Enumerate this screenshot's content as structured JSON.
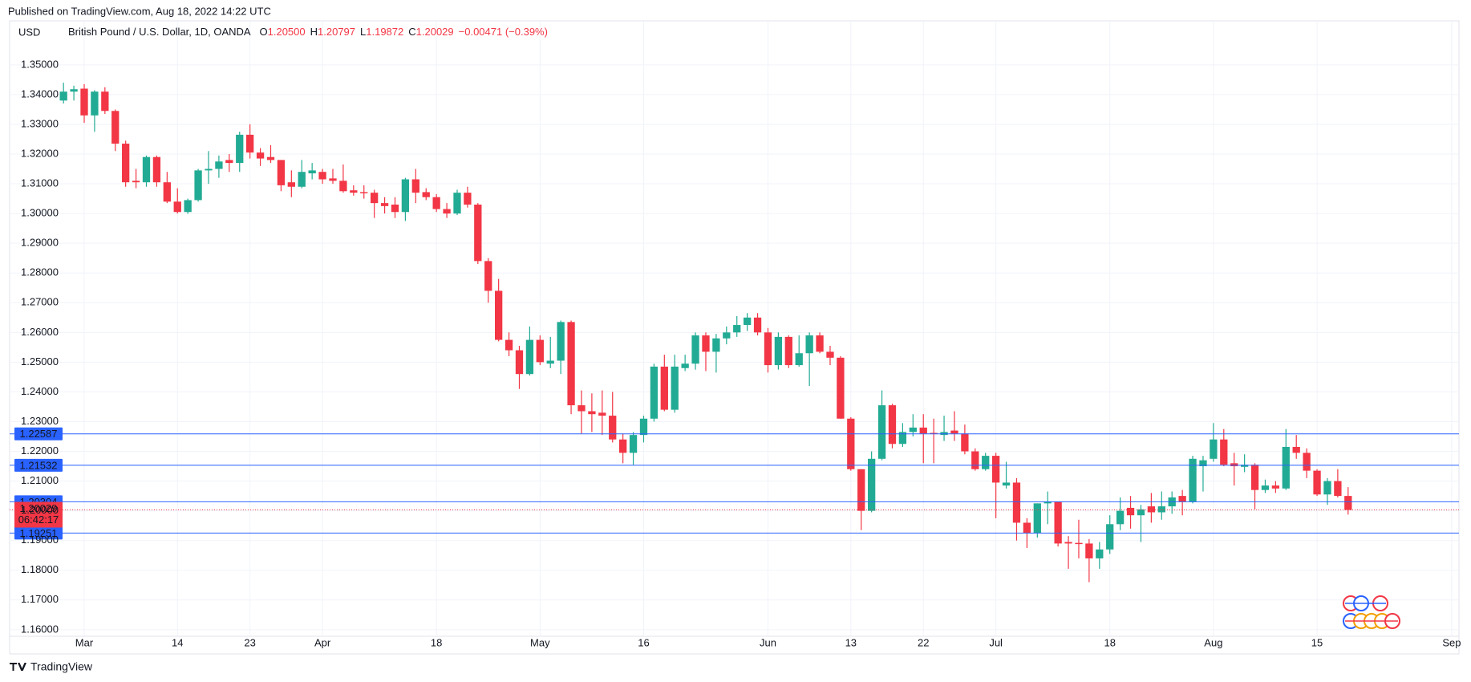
{
  "header": {
    "published": "Published on TradingView.com, Aug 18, 2022 14:22 UTC"
  },
  "footer": {
    "brand": "TradingView"
  },
  "chart_data": {
    "type": "candlestick",
    "currency": "USD",
    "title": "British Pound / U.S. Dollar, 1D, OANDA",
    "ohlc_legend": [
      {
        "label": "O",
        "text": "1.20500"
      },
      {
        "label": "H",
        "text": "1.20797"
      },
      {
        "label": "L",
        "text": "1.19872"
      },
      {
        "label": "C",
        "text": "1.20029"
      }
    ],
    "change_text": "−0.00471 (−0.39%)",
    "up_color": "#22ab94",
    "down_color": "#f23645",
    "grid": true,
    "xlim": [
      -5.2,
      134.7
    ],
    "ylim": [
      1.1578,
      1.3648
    ],
    "xticks": [
      {
        "value": 2,
        "label": "Mar"
      },
      {
        "value": 11,
        "label": "14"
      },
      {
        "value": 18,
        "label": "23"
      },
      {
        "value": 25,
        "label": "Apr"
      },
      {
        "value": 36,
        "label": "18"
      },
      {
        "value": 46,
        "label": "May"
      },
      {
        "value": 56,
        "label": "16"
      },
      {
        "value": 68,
        "label": "Jun"
      },
      {
        "value": 76,
        "label": "13"
      },
      {
        "value": 83,
        "label": "22"
      },
      {
        "value": 90,
        "label": "Jul"
      },
      {
        "value": 101,
        "label": "18"
      },
      {
        "value": 111,
        "label": "Aug"
      },
      {
        "value": 121,
        "label": "15"
      },
      {
        "value": 134,
        "label": "Sep"
      }
    ],
    "yticks": [
      {
        "value": 1.16,
        "label": "1.16000"
      },
      {
        "value": 1.17,
        "label": "1.17000"
      },
      {
        "value": 1.18,
        "label": "1.18000"
      },
      {
        "value": 1.19,
        "label": "1.19000"
      },
      {
        "value": 1.2,
        "label": "1.20000"
      },
      {
        "value": 1.21,
        "label": "1.21000"
      },
      {
        "value": 1.22,
        "label": "1.22000"
      },
      {
        "value": 1.23,
        "label": "1.23000"
      },
      {
        "value": 1.24,
        "label": "1.24000"
      },
      {
        "value": 1.25,
        "label": "1.25000"
      },
      {
        "value": 1.26,
        "label": "1.26000"
      },
      {
        "value": 1.27,
        "label": "1.27000"
      },
      {
        "value": 1.28,
        "label": "1.28000"
      },
      {
        "value": 1.29,
        "label": "1.29000"
      },
      {
        "value": 1.3,
        "label": "1.30000"
      },
      {
        "value": 1.31,
        "label": "1.31000"
      },
      {
        "value": 1.32,
        "label": "1.32000"
      },
      {
        "value": 1.33,
        "label": "1.33000"
      },
      {
        "value": 1.34,
        "label": "1.34000"
      },
      {
        "value": 1.35,
        "label": "1.35000"
      }
    ],
    "price_lines": [
      {
        "value": 1.22587,
        "label": "1.22587"
      },
      {
        "value": 1.21532,
        "label": "1.21532"
      },
      {
        "value": 1.20304,
        "label": "1.20304"
      },
      {
        "value": 1.19251,
        "label": "1.19251"
      }
    ],
    "price_line_color": "#2962ff",
    "current_price": {
      "value": 1.20029,
      "label": "1.20029",
      "countdown": "06:42:17"
    },
    "open": [
      1.338,
      1.341,
      1.342,
      1.333,
      1.341,
      1.3345,
      1.3235,
      1.311,
      1.3105,
      1.319,
      1.3105,
      1.304,
      1.3005,
      1.3045,
      1.3145,
      1.315,
      1.318,
      1.317,
      1.3265,
      1.3205,
      1.319,
      1.318,
      1.3105,
      1.309,
      1.3135,
      1.314,
      1.3118,
      1.311,
      1.3078,
      1.3072,
      1.307,
      1.3035,
      1.303,
      1.3005,
      1.3115,
      1.3072,
      1.3055,
      1.3015,
      1.3,
      1.307,
      1.303,
      1.284,
      1.274,
      1.2575,
      1.254,
      1.246,
      1.2575,
      1.2495,
      1.2505,
      1.2635,
      1.2355,
      1.2335,
      1.233,
      1.232,
      1.224,
      1.2195,
      1.2255,
      1.231,
      1.2485,
      1.234,
      1.248,
      1.2495,
      1.259,
      1.2535,
      1.258,
      1.26,
      1.2625,
      1.265,
      1.26,
      1.249,
      1.2585,
      1.249,
      1.253,
      1.259,
      1.2535,
      1.2515,
      1.231,
      1.214,
      1.2,
      1.2175,
      1.2355,
      1.2225,
      1.2265,
      1.228,
      1.2262,
      1.2255,
      1.227,
      1.226,
      1.22,
      1.214,
      1.2185,
      1.2085,
      1.2095,
      1.196,
      1.1925,
      1.2025,
      1.203,
      1.1895,
      1.1892,
      1.189,
      1.184,
      1.187,
      1.1955,
      1.201,
      1.1985,
      1.2015,
      1.1995,
      1.2015,
      1.205,
      1.203,
      1.215,
      1.2175,
      1.224,
      1.216,
      1.2148,
      1.2155,
      1.207,
      1.2085,
      1.2075,
      1.2215,
      1.2195,
      1.2135,
      1.2055,
      1.21,
      1.205
    ],
    "high": [
      1.344,
      1.343,
      1.3435,
      1.3415,
      1.3425,
      1.335,
      1.3245,
      1.315,
      1.3195,
      1.3195,
      1.314,
      1.3085,
      1.305,
      1.315,
      1.321,
      1.3195,
      1.32,
      1.3275,
      1.33,
      1.322,
      1.323,
      1.318,
      1.3145,
      1.318,
      1.317,
      1.315,
      1.315,
      1.3165,
      1.3095,
      1.3095,
      1.308,
      1.3055,
      1.3055,
      1.312,
      1.315,
      1.3085,
      1.3065,
      1.3035,
      1.308,
      1.309,
      1.3035,
      1.285,
      1.278,
      1.26,
      1.2555,
      1.262,
      1.259,
      1.2585,
      1.264,
      1.264,
      1.2405,
      1.2395,
      1.2405,
      1.24,
      1.226,
      1.2265,
      1.232,
      1.2495,
      1.2525,
      1.2525,
      1.2525,
      1.26,
      1.26,
      1.2595,
      1.262,
      1.2655,
      1.2665,
      1.2665,
      1.2615,
      1.26,
      1.259,
      1.259,
      1.26,
      1.26,
      1.2555,
      1.252,
      1.2315,
      1.214,
      1.22,
      1.2405,
      1.236,
      1.2295,
      1.2325,
      1.2325,
      1.231,
      1.232,
      1.2335,
      1.229,
      1.221,
      1.2195,
      1.2195,
      1.2165,
      1.211,
      1.1975,
      1.2025,
      1.2065,
      1.203,
      1.1915,
      1.197,
      1.1905,
      1.1895,
      1.1985,
      1.2045,
      1.205,
      1.202,
      1.206,
      1.2065,
      1.2065,
      1.207,
      1.2185,
      1.2185,
      1.2295,
      1.2275,
      1.2195,
      1.219,
      1.216,
      1.2105,
      1.21,
      1.2275,
      1.2255,
      1.221,
      1.214,
      1.211,
      1.214,
      1.20797
    ],
    "low": [
      1.337,
      1.338,
      1.3305,
      1.3275,
      1.3335,
      1.321,
      1.309,
      1.3085,
      1.309,
      1.309,
      1.3035,
      1.3,
      1.2999,
      1.304,
      1.31,
      1.312,
      1.314,
      1.314,
      1.3185,
      1.316,
      1.317,
      1.3075,
      1.3055,
      1.3085,
      1.3115,
      1.31,
      1.31,
      1.307,
      1.306,
      1.305,
      1.2985,
      1.3,
      1.2985,
      1.2975,
      1.3035,
      1.3045,
      1.3005,
      1.2985,
      1.2995,
      1.302,
      1.283,
      1.27,
      1.257,
      1.252,
      1.241,
      1.2455,
      1.249,
      1.248,
      1.246,
      1.2325,
      1.226,
      1.2265,
      1.2255,
      1.223,
      1.216,
      1.2155,
      1.223,
      1.23,
      1.2335,
      1.233,
      1.247,
      1.2475,
      1.247,
      1.2465,
      1.256,
      1.2585,
      1.2605,
      1.259,
      1.2465,
      1.2475,
      1.248,
      1.2485,
      1.242,
      1.253,
      1.249,
      1.231,
      1.2135,
      1.1935,
      1.1995,
      1.217,
      1.221,
      1.2215,
      1.225,
      1.216,
      1.216,
      1.2235,
      1.2235,
      1.219,
      1.2135,
      1.2135,
      1.1975,
      1.2075,
      1.19,
      1.1875,
      1.191,
      1.1955,
      1.188,
      1.1805,
      1.184,
      1.176,
      1.1805,
      1.1855,
      1.1935,
      1.194,
      1.1895,
      1.196,
      1.197,
      1.199,
      1.1985,
      1.2025,
      1.2065,
      1.2165,
      1.215,
      1.2085,
      1.213,
      1.2005,
      1.206,
      1.206,
      1.207,
      1.2175,
      1.211,
      1.205,
      1.202,
      1.2045,
      1.19872
    ],
    "close": [
      1.341,
      1.3418,
      1.333,
      1.341,
      1.3345,
      1.3235,
      1.3105,
      1.3105,
      1.319,
      1.3105,
      1.304,
      1.3005,
      1.3045,
      1.3145,
      1.315,
      1.3175,
      1.317,
      1.3265,
      1.3205,
      1.3185,
      1.318,
      1.3095,
      1.309,
      1.314,
      1.3145,
      1.3115,
      1.311,
      1.3075,
      1.307,
      1.3068,
      1.3035,
      1.3025,
      1.3005,
      1.3115,
      1.307,
      1.3055,
      1.3015,
      1.3,
      1.307,
      1.303,
      1.284,
      1.274,
      1.2575,
      1.254,
      1.246,
      1.2575,
      1.25,
      1.2505,
      1.2635,
      1.2355,
      1.2335,
      1.2325,
      1.232,
      1.224,
      1.2195,
      1.2255,
      1.231,
      1.2485,
      1.234,
      1.2485,
      1.2495,
      1.259,
      1.2535,
      1.258,
      1.26,
      1.2625,
      1.265,
      1.26,
      1.249,
      1.2585,
      1.249,
      1.253,
      1.259,
      1.2535,
      1.2515,
      1.231,
      1.214,
      1.2,
      1.2175,
      1.2355,
      1.2225,
      1.2265,
      1.228,
      1.226,
      1.2258,
      1.2265,
      1.226,
      1.22,
      1.214,
      1.2185,
      1.2095,
      1.2095,
      1.196,
      1.1925,
      1.2025,
      1.203,
      1.189,
      1.189,
      1.1888,
      1.184,
      1.187,
      1.1955,
      1.2,
      1.1985,
      1.2005,
      1.1995,
      1.2015,
      1.2045,
      1.203,
      1.2175,
      1.217,
      1.224,
      1.2155,
      1.215,
      1.2155,
      1.207,
      1.2085,
      1.2075,
      1.2215,
      1.2195,
      1.2135,
      1.2055,
      1.21,
      1.205,
      1.20029
    ]
  }
}
